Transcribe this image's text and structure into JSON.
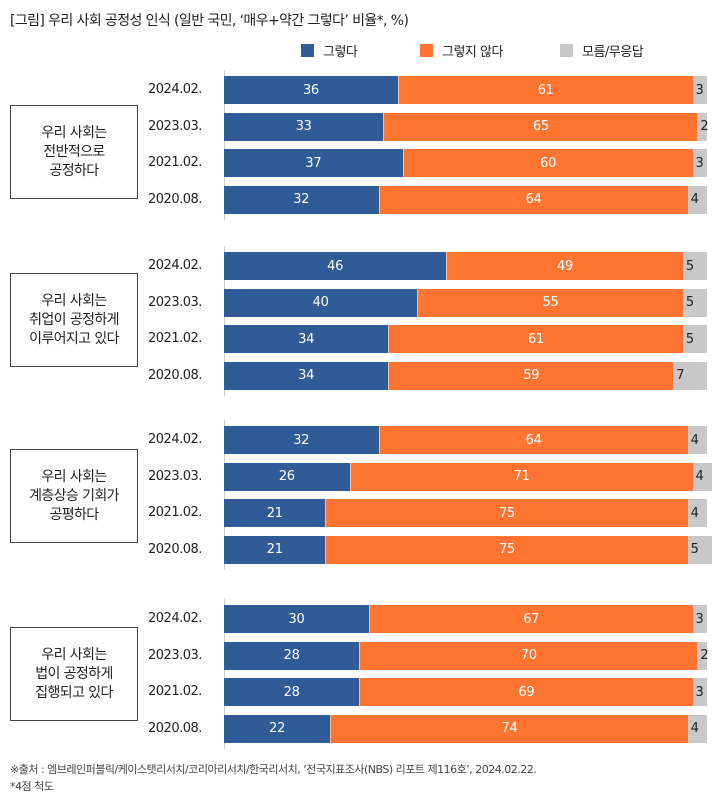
{
  "title": "[그림] 우리 사회 공정성 인식 (일반 국민, ‘매우+약간 그렇다’ 비율*, %)",
  "colors": {
    "yes": "#2f5b97",
    "no": "#ff7430",
    "dk": "#c8c8c8"
  },
  "chart_data": {
    "type": "bar",
    "orientation": "horizontal-stacked-100",
    "title": "[그림] 우리 사회 공정성 인식 (일반 국민, ‘매우+약간 그렇다’ 비율*, %)",
    "legend": [
      "그렇다",
      "그렇지 않다",
      "모름/무응답"
    ],
    "legend_position": "top-right",
    "xlim": [
      0,
      100
    ],
    "unit": "%",
    "groups": [
      {
        "label": "우리 사회는\n전반적으로\n공정하다",
        "rows": [
          {
            "period": "2024.02.",
            "yes": 36,
            "no": 61,
            "dk": 3
          },
          {
            "period": "2023.03.",
            "yes": 33,
            "no": 65,
            "dk": 2
          },
          {
            "period": "2021.02.",
            "yes": 37,
            "no": 60,
            "dk": 3
          },
          {
            "period": "2020.08.",
            "yes": 32,
            "no": 64,
            "dk": 4
          }
        ]
      },
      {
        "label": "우리 사회는\n취업이 공정하게\n이루어지고 있다",
        "rows": [
          {
            "period": "2024.02.",
            "yes": 46,
            "no": 49,
            "dk": 5
          },
          {
            "period": "2023.03.",
            "yes": 40,
            "no": 55,
            "dk": 5
          },
          {
            "period": "2021.02.",
            "yes": 34,
            "no": 61,
            "dk": 5
          },
          {
            "period": "2020.08.",
            "yes": 34,
            "no": 59,
            "dk": 7
          }
        ]
      },
      {
        "label": "우리 사회는\n계층상승 기회가\n공평하다",
        "rows": [
          {
            "period": "2024.02.",
            "yes": 32,
            "no": 64,
            "dk": 4
          },
          {
            "period": "2023.03.",
            "yes": 26,
            "no": 71,
            "dk": 4
          },
          {
            "period": "2021.02.",
            "yes": 21,
            "no": 75,
            "dk": 4
          },
          {
            "period": "2020.08.",
            "yes": 21,
            "no": 75,
            "dk": 5
          }
        ]
      },
      {
        "label": "우리 사회는\n법이 공정하게\n집행되고 있다",
        "rows": [
          {
            "period": "2024.02.",
            "yes": 30,
            "no": 67,
            "dk": 3
          },
          {
            "period": "2023.03.",
            "yes": 28,
            "no": 70,
            "dk": 2
          },
          {
            "period": "2021.02.",
            "yes": 28,
            "no": 69,
            "dk": 3
          },
          {
            "period": "2020.08.",
            "yes": 22,
            "no": 74,
            "dk": 4
          }
        ]
      }
    ]
  },
  "footer": {
    "source": "※출처 : 엠브레인퍼블릭/케이스탯리서치/코리아리서치/한국리서치, ‘전국지표조사(NBS) 리포트 제116호’, 2024.02.22.",
    "note": "*4점 척도"
  }
}
